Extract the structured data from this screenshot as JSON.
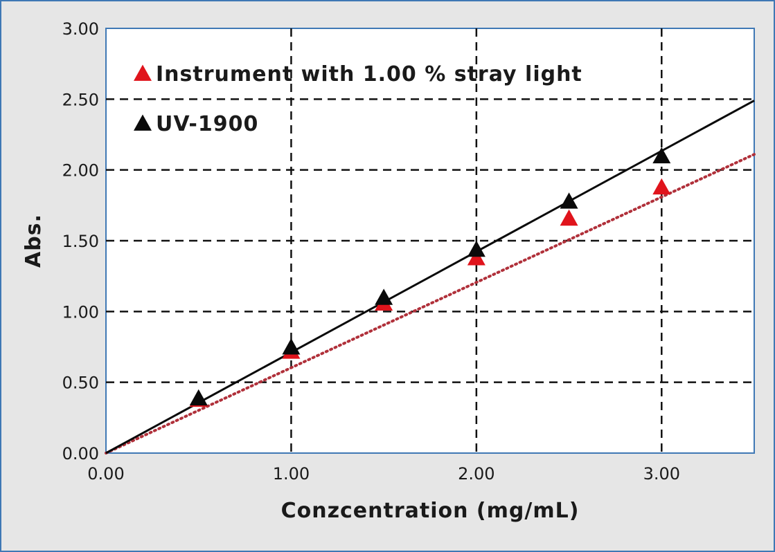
{
  "chart_data": {
    "type": "scatter",
    "xlabel": "Conzcentration (mg/mL)",
    "ylabel": "Abs.",
    "xlim": [
      0,
      3.5
    ],
    "ylim": [
      0,
      3.0
    ],
    "xticks": [
      0.0,
      1.0,
      2.0,
      3.0
    ],
    "xtick_labels": [
      "0.00",
      "1.00",
      "2.00",
      "3.00"
    ],
    "yticks": [
      0.0,
      0.5,
      1.0,
      1.5,
      2.0,
      2.5,
      3.0
    ],
    "ytick_labels": [
      "0.00",
      "0.50",
      "1.00",
      "1.50",
      "2.00",
      "2.50",
      "3.00"
    ],
    "grid": true,
    "legend_position": "top-left",
    "series": [
      {
        "name": "Instrument with 1.00 % stray light",
        "color": "#e0141c",
        "marker": "triangle",
        "line_style": "dotted",
        "line_color": "#b0303a",
        "x": [
          0.5,
          1.0,
          1.5,
          2.0,
          2.5,
          3.0
        ],
        "y": [
          0.37,
          0.71,
          1.05,
          1.37,
          1.65,
          1.87
        ],
        "trend": {
          "x": [
            0.0,
            3.5
          ],
          "y": [
            0.0,
            2.11
          ]
        }
      },
      {
        "name": "UV-1900",
        "color": "#0a0a0a",
        "marker": "triangle",
        "line_style": "solid",
        "line_color": "#0a0a0a",
        "x": [
          0.5,
          1.0,
          1.5,
          2.0,
          2.5,
          3.0
        ],
        "y": [
          0.38,
          0.74,
          1.09,
          1.43,
          1.77,
          2.09
        ],
        "trend": {
          "x": [
            0.0,
            3.5
          ],
          "y": [
            0.0,
            2.49
          ]
        }
      }
    ]
  }
}
